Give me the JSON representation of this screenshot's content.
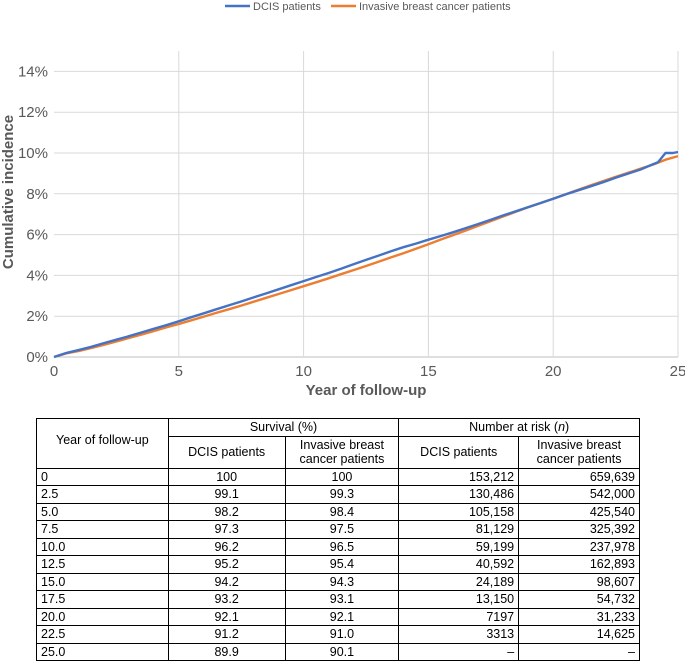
{
  "chart_data": {
    "type": "line",
    "xlabel": "Year of follow-up",
    "ylabel": "Cumulative incidence",
    "xlim": [
      0,
      25
    ],
    "ylim": [
      0,
      15
    ],
    "xticks": [
      "0",
      "5",
      "10",
      "15",
      "20",
      "25"
    ],
    "yticks": [
      "0%",
      "2%",
      "4%",
      "6%",
      "8%",
      "10%",
      "12%",
      "14%"
    ],
    "grid": true,
    "legend_position": "top",
    "series": [
      {
        "name": "DCIS patients",
        "color": "#4472c4",
        "x": [
          0,
          0.5,
          1,
          1.5,
          2,
          2.5,
          3,
          3.5,
          4,
          4.5,
          5,
          5.5,
          6,
          6.5,
          7,
          7.5,
          8,
          8.5,
          9,
          9.5,
          10,
          10.5,
          11,
          11.5,
          12,
          12.5,
          13,
          13.5,
          14,
          14.5,
          15,
          15.5,
          16,
          16.5,
          17,
          17.5,
          18,
          18.5,
          19,
          19.5,
          20,
          20.5,
          21,
          21.5,
          22,
          22.5,
          23,
          23.5,
          24,
          24.2,
          24.5,
          24.8,
          25
        ],
        "values": [
          0,
          0.2,
          0.35,
          0.5,
          0.68,
          0.85,
          1.02,
          1.2,
          1.38,
          1.56,
          1.75,
          1.95,
          2.14,
          2.34,
          2.53,
          2.72,
          2.92,
          3.12,
          3.32,
          3.52,
          3.72,
          3.92,
          4.12,
          4.33,
          4.55,
          4.76,
          4.97,
          5.18,
          5.38,
          5.56,
          5.75,
          5.93,
          6.12,
          6.32,
          6.52,
          6.73,
          6.94,
          7.14,
          7.35,
          7.55,
          7.76,
          7.97,
          8.17,
          8.37,
          8.57,
          8.79,
          8.99,
          9.19,
          9.45,
          9.55,
          10.0,
          10.0,
          10.05
        ]
      },
      {
        "name": "Invasive breast cancer patients",
        "color": "#ed7d31",
        "x": [
          0,
          0.5,
          1,
          1.5,
          2,
          2.5,
          3,
          3.5,
          4,
          4.5,
          5,
          5.5,
          6,
          6.5,
          7,
          7.5,
          8,
          8.5,
          9,
          9.5,
          10,
          10.5,
          11,
          11.5,
          12,
          12.5,
          13,
          13.5,
          14,
          14.5,
          15,
          15.5,
          16,
          16.5,
          17,
          17.5,
          18,
          18.5,
          19,
          19.5,
          20,
          20.5,
          21,
          21.5,
          22,
          22.5,
          23,
          23.5,
          24,
          24.5,
          25
        ],
        "values": [
          0,
          0.18,
          0.3,
          0.44,
          0.6,
          0.76,
          0.93,
          1.1,
          1.27,
          1.45,
          1.62,
          1.8,
          1.98,
          2.16,
          2.34,
          2.52,
          2.71,
          2.9,
          3.09,
          3.28,
          3.47,
          3.66,
          3.86,
          4.06,
          4.26,
          4.46,
          4.67,
          4.88,
          5.09,
          5.31,
          5.53,
          5.76,
          5.98,
          6.2,
          6.43,
          6.66,
          6.89,
          7.12,
          7.34,
          7.55,
          7.76,
          7.98,
          8.2,
          8.41,
          8.62,
          8.83,
          9.03,
          9.23,
          9.43,
          9.67,
          9.85
        ]
      }
    ]
  },
  "table": {
    "header": {
      "year": "Year of follow-up",
      "survival": "Survival (%)",
      "risk_prefix": "Number at risk (",
      "risk_italic": "n",
      "risk_suffix": ")",
      "dcis": "DCIS patients",
      "invasive": "Invasive breast cancer patients"
    },
    "rows": [
      [
        "0",
        "100",
        "100",
        "153,212",
        "659,639"
      ],
      [
        "2.5",
        "99.1",
        "99.3",
        "130,486",
        "542,000"
      ],
      [
        "5.0",
        "98.2",
        "98.4",
        "105,158",
        "425,540"
      ],
      [
        "7.5",
        "97.3",
        "97.5",
        "81,129",
        "325,392"
      ],
      [
        "10.0",
        "96.2",
        "96.5",
        "59,199",
        "237,978"
      ],
      [
        "12.5",
        "95.2",
        "95.4",
        "40,592",
        "162,893"
      ],
      [
        "15.0",
        "94.2",
        "94.3",
        "24,189",
        "98,607"
      ],
      [
        "17.5",
        "93.2",
        "93.1",
        "13,150",
        "54,732"
      ],
      [
        "20.0",
        "92.1",
        "92.1",
        "7197",
        "31,233"
      ],
      [
        "22.5",
        "91.2",
        "91.0",
        "3313",
        "14,625"
      ],
      [
        "25.0",
        "89.9",
        "90.1",
        "–",
        "–"
      ]
    ]
  }
}
